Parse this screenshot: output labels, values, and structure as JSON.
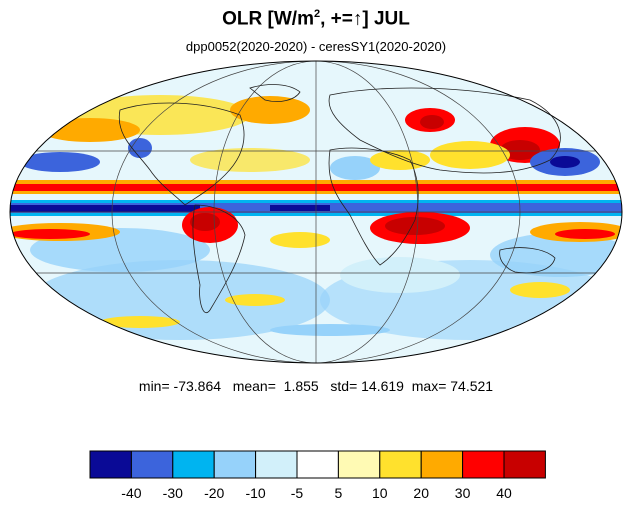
{
  "title": {
    "main": "OLR [W/m",
    "sup": "2",
    "rest": ", +=",
    "arrow": "↑",
    "tail": "] JUL"
  },
  "subtitle": "dpp0052(2020-2020) - ceresSY1(2020-2020)",
  "stats": {
    "min_label": "min=",
    "min": "-73.864",
    "mean_label": "mean=",
    "mean": "1.855",
    "std_label": "std=",
    "std": "14.619",
    "max_label": "max=",
    "max": "74.521"
  },
  "colorbar": {
    "colors": [
      "#0a0a96",
      "#3c64dc",
      "#00b4f0",
      "#96d2fa",
      "#d2f0fa",
      "#ffffff",
      "#fffab4",
      "#ffe12d",
      "#ffaa00",
      "#ff0000",
      "#c80000"
    ],
    "labels": [
      "-40",
      "-30",
      "-20",
      "-10",
      "-5",
      "5",
      "10",
      "20",
      "30",
      "40"
    ]
  },
  "map": {
    "projection": "mollweide",
    "colors": {
      "strong_negative": "#0a0a96",
      "negative": "#3c64dc",
      "mid_negative": "#00b4f0",
      "light_negative": "#96d2fa",
      "weak_negative": "#d2f0fa",
      "weak_positive": "#fffab4",
      "light_positive": "#ffe12d",
      "positive": "#ffaa00",
      "strong_positive": "#ff0000",
      "max_positive": "#c80000"
    }
  }
}
